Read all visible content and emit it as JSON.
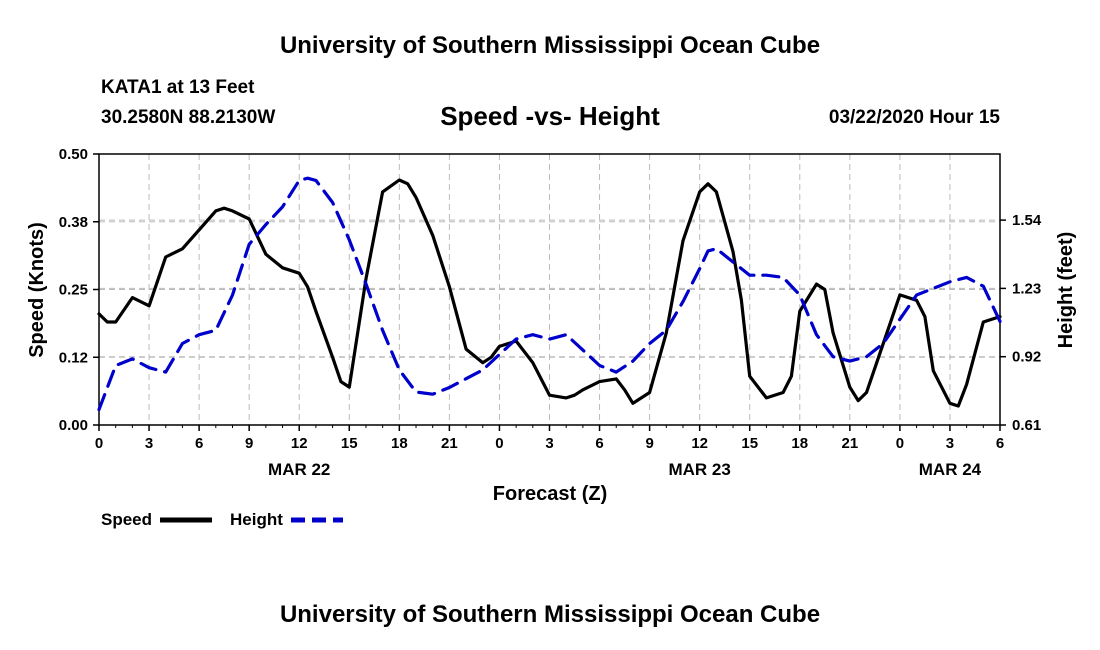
{
  "header": {
    "title": "University of Southern Mississippi Ocean Cube",
    "footer_title": "University of Southern Mississippi Ocean Cube",
    "station": "KATA1 at 13 Feet",
    "coords": "30.2580N 88.2130W",
    "date": "03/22/2020 Hour 15"
  },
  "chart_data": {
    "type": "line",
    "title": "Speed -vs- Height",
    "xlabel": "Forecast (Z)",
    "ylabel_left": "Speed (Knots)",
    "ylabel_right": "Height (feet)",
    "x_range": [
      0,
      54
    ],
    "x_ticks": [
      0,
      3,
      6,
      9,
      12,
      15,
      18,
      21,
      24,
      27,
      30,
      33,
      36,
      39,
      42,
      45,
      48,
      51,
      54
    ],
    "x_tick_labels": [
      "0",
      "3",
      "6",
      "9",
      "12",
      "15",
      "18",
      "21",
      "0",
      "3",
      "6",
      "9",
      "12",
      "15",
      "18",
      "21",
      "0",
      "3",
      "6"
    ],
    "date_labels": [
      {
        "text": "MAR 22",
        "x": 12
      },
      {
        "text": "MAR 23",
        "x": 36
      },
      {
        "text": "MAR 24",
        "x": 51
      }
    ],
    "y_left_range": [
      0,
      0.5
    ],
    "y_left_ticks": [
      0,
      0.125,
      0.25,
      0.375,
      0.5
    ],
    "y_left_tick_labels": [
      "0.00",
      "0.12",
      "0.25",
      "0.38",
      "0.50"
    ],
    "y_right_range": [
      0.61,
      1.84
    ],
    "y_right_ticks": [
      0.61,
      0.92,
      1.23,
      1.54
    ],
    "y_right_tick_labels": [
      "0.61",
      "0.92",
      "1.23",
      "1.54"
    ],
    "grid": true,
    "legend_position": "bottom-left",
    "series": [
      {
        "name": "Speed",
        "axis": "left",
        "color": "#000000",
        "style": "solid",
        "x": [
          0,
          0.5,
          1,
          2,
          3,
          4,
          5,
          6,
          7,
          7.5,
          8,
          9,
          10,
          11,
          12,
          12.5,
          13,
          14,
          14.5,
          15,
          16,
          17,
          18,
          18.5,
          19,
          20,
          21,
          22,
          23,
          23.5,
          24,
          25,
          26,
          27,
          28,
          28.5,
          29,
          30,
          31,
          31.5,
          32,
          33,
          34,
          35,
          36,
          36.5,
          37,
          38,
          38.5,
          39,
          40,
          41,
          41.5,
          42,
          43,
          43.5,
          44,
          45,
          45.5,
          46,
          47,
          48,
          49,
          49.5,
          50,
          51,
          51.5,
          52,
          53,
          54
        ],
        "values": [
          0.205,
          0.19,
          0.19,
          0.235,
          0.22,
          0.31,
          0.325,
          0.36,
          0.395,
          0.4,
          0.395,
          0.38,
          0.315,
          0.29,
          0.28,
          0.255,
          0.21,
          0.125,
          0.08,
          0.07,
          0.27,
          0.43,
          0.452,
          0.445,
          0.42,
          0.35,
          0.255,
          0.14,
          0.115,
          0.125,
          0.145,
          0.155,
          0.115,
          0.055,
          0.05,
          0.055,
          0.065,
          0.08,
          0.085,
          0.065,
          0.04,
          0.06,
          0.17,
          0.34,
          0.43,
          0.445,
          0.43,
          0.32,
          0.23,
          0.09,
          0.05,
          0.06,
          0.09,
          0.21,
          0.26,
          0.25,
          0.17,
          0.07,
          0.045,
          0.06,
          0.15,
          0.24,
          0.23,
          0.2,
          0.1,
          0.04,
          0.035,
          0.075,
          0.19,
          0.2
        ]
      },
      {
        "name": "Height",
        "axis": "right",
        "color": "#0000cc",
        "style": "dashed",
        "x": [
          0,
          1,
          2,
          3,
          4,
          5,
          6,
          7,
          8,
          9,
          10,
          11,
          12,
          12.5,
          13,
          14,
          15,
          16,
          17,
          18,
          19,
          20,
          21,
          22,
          23,
          24,
          25,
          26,
          27,
          28,
          29,
          30,
          31,
          32,
          33,
          34,
          35,
          36,
          36.5,
          37,
          38,
          39,
          40,
          41,
          42,
          43,
          44,
          45,
          46,
          47,
          48,
          49,
          50,
          51,
          52,
          53,
          54
        ],
        "values": [
          0.68,
          0.88,
          0.91,
          0.87,
          0.85,
          0.98,
          1.02,
          1.04,
          1.2,
          1.43,
          1.52,
          1.6,
          1.72,
          1.73,
          1.72,
          1.62,
          1.45,
          1.25,
          1.04,
          0.86,
          0.76,
          0.75,
          0.78,
          0.82,
          0.86,
          0.93,
          1.0,
          1.02,
          1.0,
          1.02,
          0.95,
          0.88,
          0.85,
          0.9,
          0.98,
          1.04,
          1.17,
          1.32,
          1.4,
          1.41,
          1.35,
          1.29,
          1.29,
          1.28,
          1.2,
          1.02,
          0.92,
          0.9,
          0.92,
          0.98,
          1.09,
          1.2,
          1.23,
          1.26,
          1.28,
          1.24,
          1.08
        ]
      }
    ]
  }
}
